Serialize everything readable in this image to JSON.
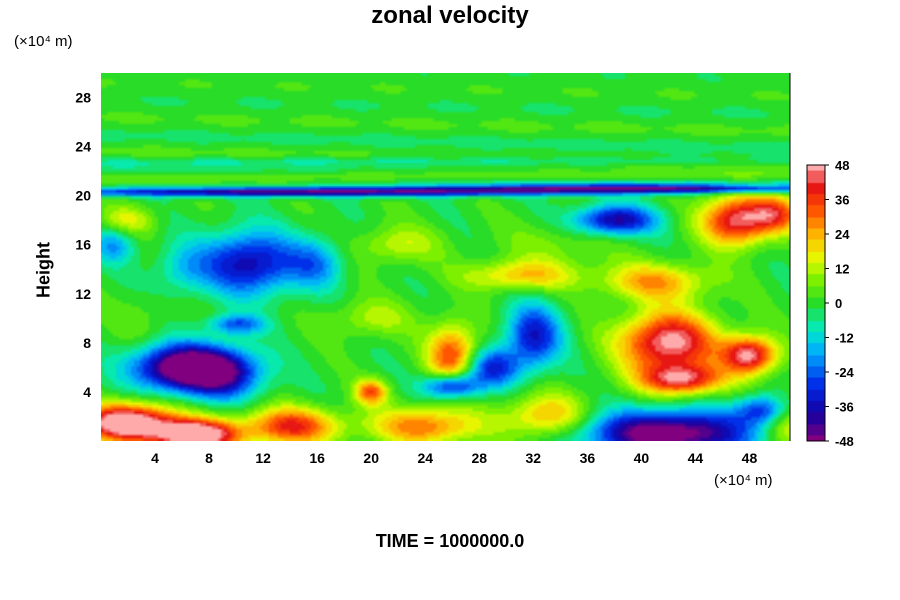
{
  "chart_data": {
    "type": "heatmap",
    "title": "zonal velocity",
    "ylabel": "Height",
    "y_unit": "(×10⁴ m)",
    "x_unit": "(×10⁴ m)",
    "footer": "TIME = 1000000.0",
    "xlim": [
      0,
      51
    ],
    "ylim": [
      0,
      30
    ],
    "xticks": [
      4,
      8,
      12,
      16,
      20,
      24,
      28,
      32,
      36,
      40,
      44,
      48
    ],
    "yticks": [
      4,
      8,
      12,
      16,
      20,
      24,
      28
    ],
    "colorbar": {
      "ticks": [
        -48,
        -36,
        -24,
        -12,
        0,
        12,
        24,
        36,
        48
      ],
      "min": -48,
      "max": 48
    },
    "features": [
      {
        "x": 2,
        "y": 1.5,
        "value": 60,
        "sx": 3.5,
        "sy": 1.5
      },
      {
        "x": 7,
        "y": 0.5,
        "value": 60,
        "sx": 3,
        "sy": 1.2
      },
      {
        "x": 14,
        "y": 1.2,
        "value": 38,
        "sx": 3.5,
        "sy": 1.5
      },
      {
        "x": 24,
        "y": 1.2,
        "value": 30,
        "sx": 4,
        "sy": 1.5
      },
      {
        "x": 33,
        "y": 2,
        "value": 25,
        "sx": 3,
        "sy": 1.8
      },
      {
        "x": 42,
        "y": 0.6,
        "value": -55,
        "sx": 6,
        "sy": 1.8
      },
      {
        "x": 51,
        "y": 1.5,
        "value": 20,
        "sx": 2,
        "sy": 2
      },
      {
        "x": 3,
        "y": 10,
        "value": 5,
        "sx": 2,
        "sy": 2
      },
      {
        "x": 6,
        "y": 6,
        "value": -55,
        "sx": 3.5,
        "sy": 1.8
      },
      {
        "x": 9,
        "y": 5.5,
        "value": -35,
        "sx": 3,
        "sy": 2
      },
      {
        "x": 12,
        "y": 7.5,
        "value": 0,
        "sx": 3,
        "sy": 2
      },
      {
        "x": 11,
        "y": 14.5,
        "value": -38,
        "sx": 3.5,
        "sy": 2.5
      },
      {
        "x": 16,
        "y": 14.5,
        "value": -18,
        "sx": 2,
        "sy": 2
      },
      {
        "x": 6,
        "y": 14,
        "value": -12,
        "sx": 2,
        "sy": 2
      },
      {
        "x": 1,
        "y": 16,
        "value": -18,
        "sx": 1.5,
        "sy": 1.5
      },
      {
        "x": 2,
        "y": 18,
        "value": 15,
        "sx": 2,
        "sy": 1.2
      },
      {
        "x": 20,
        "y": 4,
        "value": 32,
        "sx": 1.2,
        "sy": 1
      },
      {
        "x": 26,
        "y": 7,
        "value": 35,
        "sx": 1.8,
        "sy": 2.5
      },
      {
        "x": 26,
        "y": 4.5,
        "value": -40,
        "sx": 2,
        "sy": 1
      },
      {
        "x": 29,
        "y": 6,
        "value": -30,
        "sx": 2,
        "sy": 1.5
      },
      {
        "x": 32,
        "y": 8.5,
        "value": -34,
        "sx": 2,
        "sy": 2.5
      },
      {
        "x": 31,
        "y": 13.5,
        "value": 22,
        "sx": 4,
        "sy": 1.2
      },
      {
        "x": 22,
        "y": 16,
        "value": 14,
        "sx": 3,
        "sy": 1.5
      },
      {
        "x": 38,
        "y": 18,
        "value": -40,
        "sx": 3,
        "sy": 1.2
      },
      {
        "x": 41,
        "y": 13,
        "value": 25,
        "sx": 4,
        "sy": 1.5
      },
      {
        "x": 42,
        "y": 8,
        "value": 50,
        "sx": 3.5,
        "sy": 2.5
      },
      {
        "x": 43,
        "y": 5,
        "value": 40,
        "sx": 3,
        "sy": 1.2
      },
      {
        "x": 48,
        "y": 7,
        "value": 48,
        "sx": 2,
        "sy": 1.5
      },
      {
        "x": 47,
        "y": 18,
        "value": 45,
        "sx": 2.5,
        "sy": 2
      },
      {
        "x": 50,
        "y": 18.5,
        "value": 30,
        "sx": 2,
        "sy": 1.5
      },
      {
        "x": 49,
        "y": 2.5,
        "value": -30,
        "sx": 2,
        "sy": 1.2
      },
      {
        "x": 34,
        "y": 16,
        "value": 8,
        "sx": 4,
        "sy": 2
      },
      {
        "x": 15,
        "y": 20.3,
        "value": -45,
        "sx": 20,
        "sy": 0.35
      },
      {
        "x": 40,
        "y": 20.6,
        "value": -45,
        "sx": 16,
        "sy": 0.35
      },
      {
        "x": 25,
        "y": 21.6,
        "value": 10,
        "sx": 30,
        "sy": 0.4
      },
      {
        "x": 25,
        "y": 22.8,
        "value": -10,
        "sx": 30,
        "sy": 0.4
      },
      {
        "x": 10,
        "y": 9.5,
        "value": -25,
        "sx": 2,
        "sy": 0.8
      },
      {
        "x": 20,
        "y": 10,
        "value": 12,
        "sx": 3,
        "sy": 1.5
      }
    ]
  }
}
